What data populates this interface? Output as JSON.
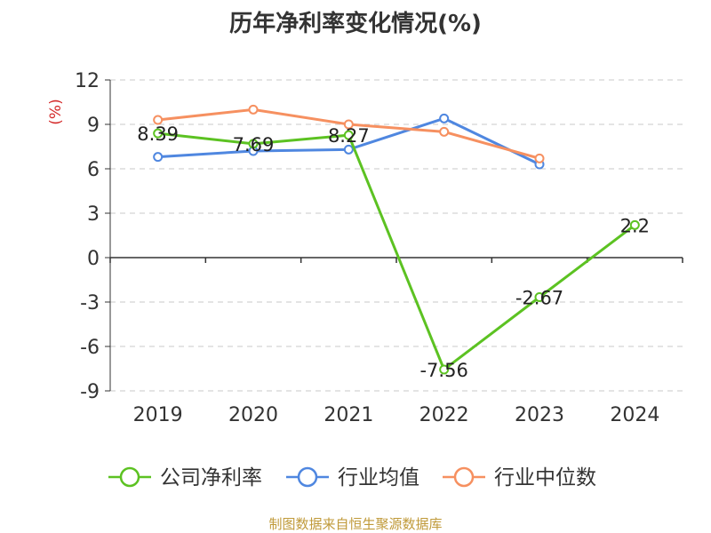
{
  "chart_data": {
    "type": "line",
    "title": "历年净利率变化情况(%)",
    "ylabel": "(%)",
    "xlabel": "",
    "categories": [
      "2019",
      "2020",
      "2021",
      "2022",
      "2023",
      "2024"
    ],
    "ylim": [
      -9,
      12
    ],
    "yticks": [
      -9,
      -6,
      -3,
      0,
      3,
      6,
      9,
      12
    ],
    "grid": true,
    "legend_position": "bottom",
    "series": [
      {
        "name": "公司净利率",
        "color": "#5cc222",
        "values": [
          8.39,
          7.69,
          8.27,
          -7.56,
          -2.67,
          2.2
        ],
        "labels": [
          "8.39",
          "7.69",
          "8.27",
          "-7.56",
          "-2.67",
          "2.2"
        ]
      },
      {
        "name": "行业均值",
        "color": "#4f87e0",
        "values": [
          6.8,
          7.2,
          7.3,
          9.4,
          6.3,
          null
        ]
      },
      {
        "name": "行业中位数",
        "color": "#f69060",
        "values": [
          9.3,
          10.0,
          9.0,
          8.5,
          6.7,
          null
        ]
      }
    ]
  },
  "source": "制图数据来自恒生聚源数据库"
}
